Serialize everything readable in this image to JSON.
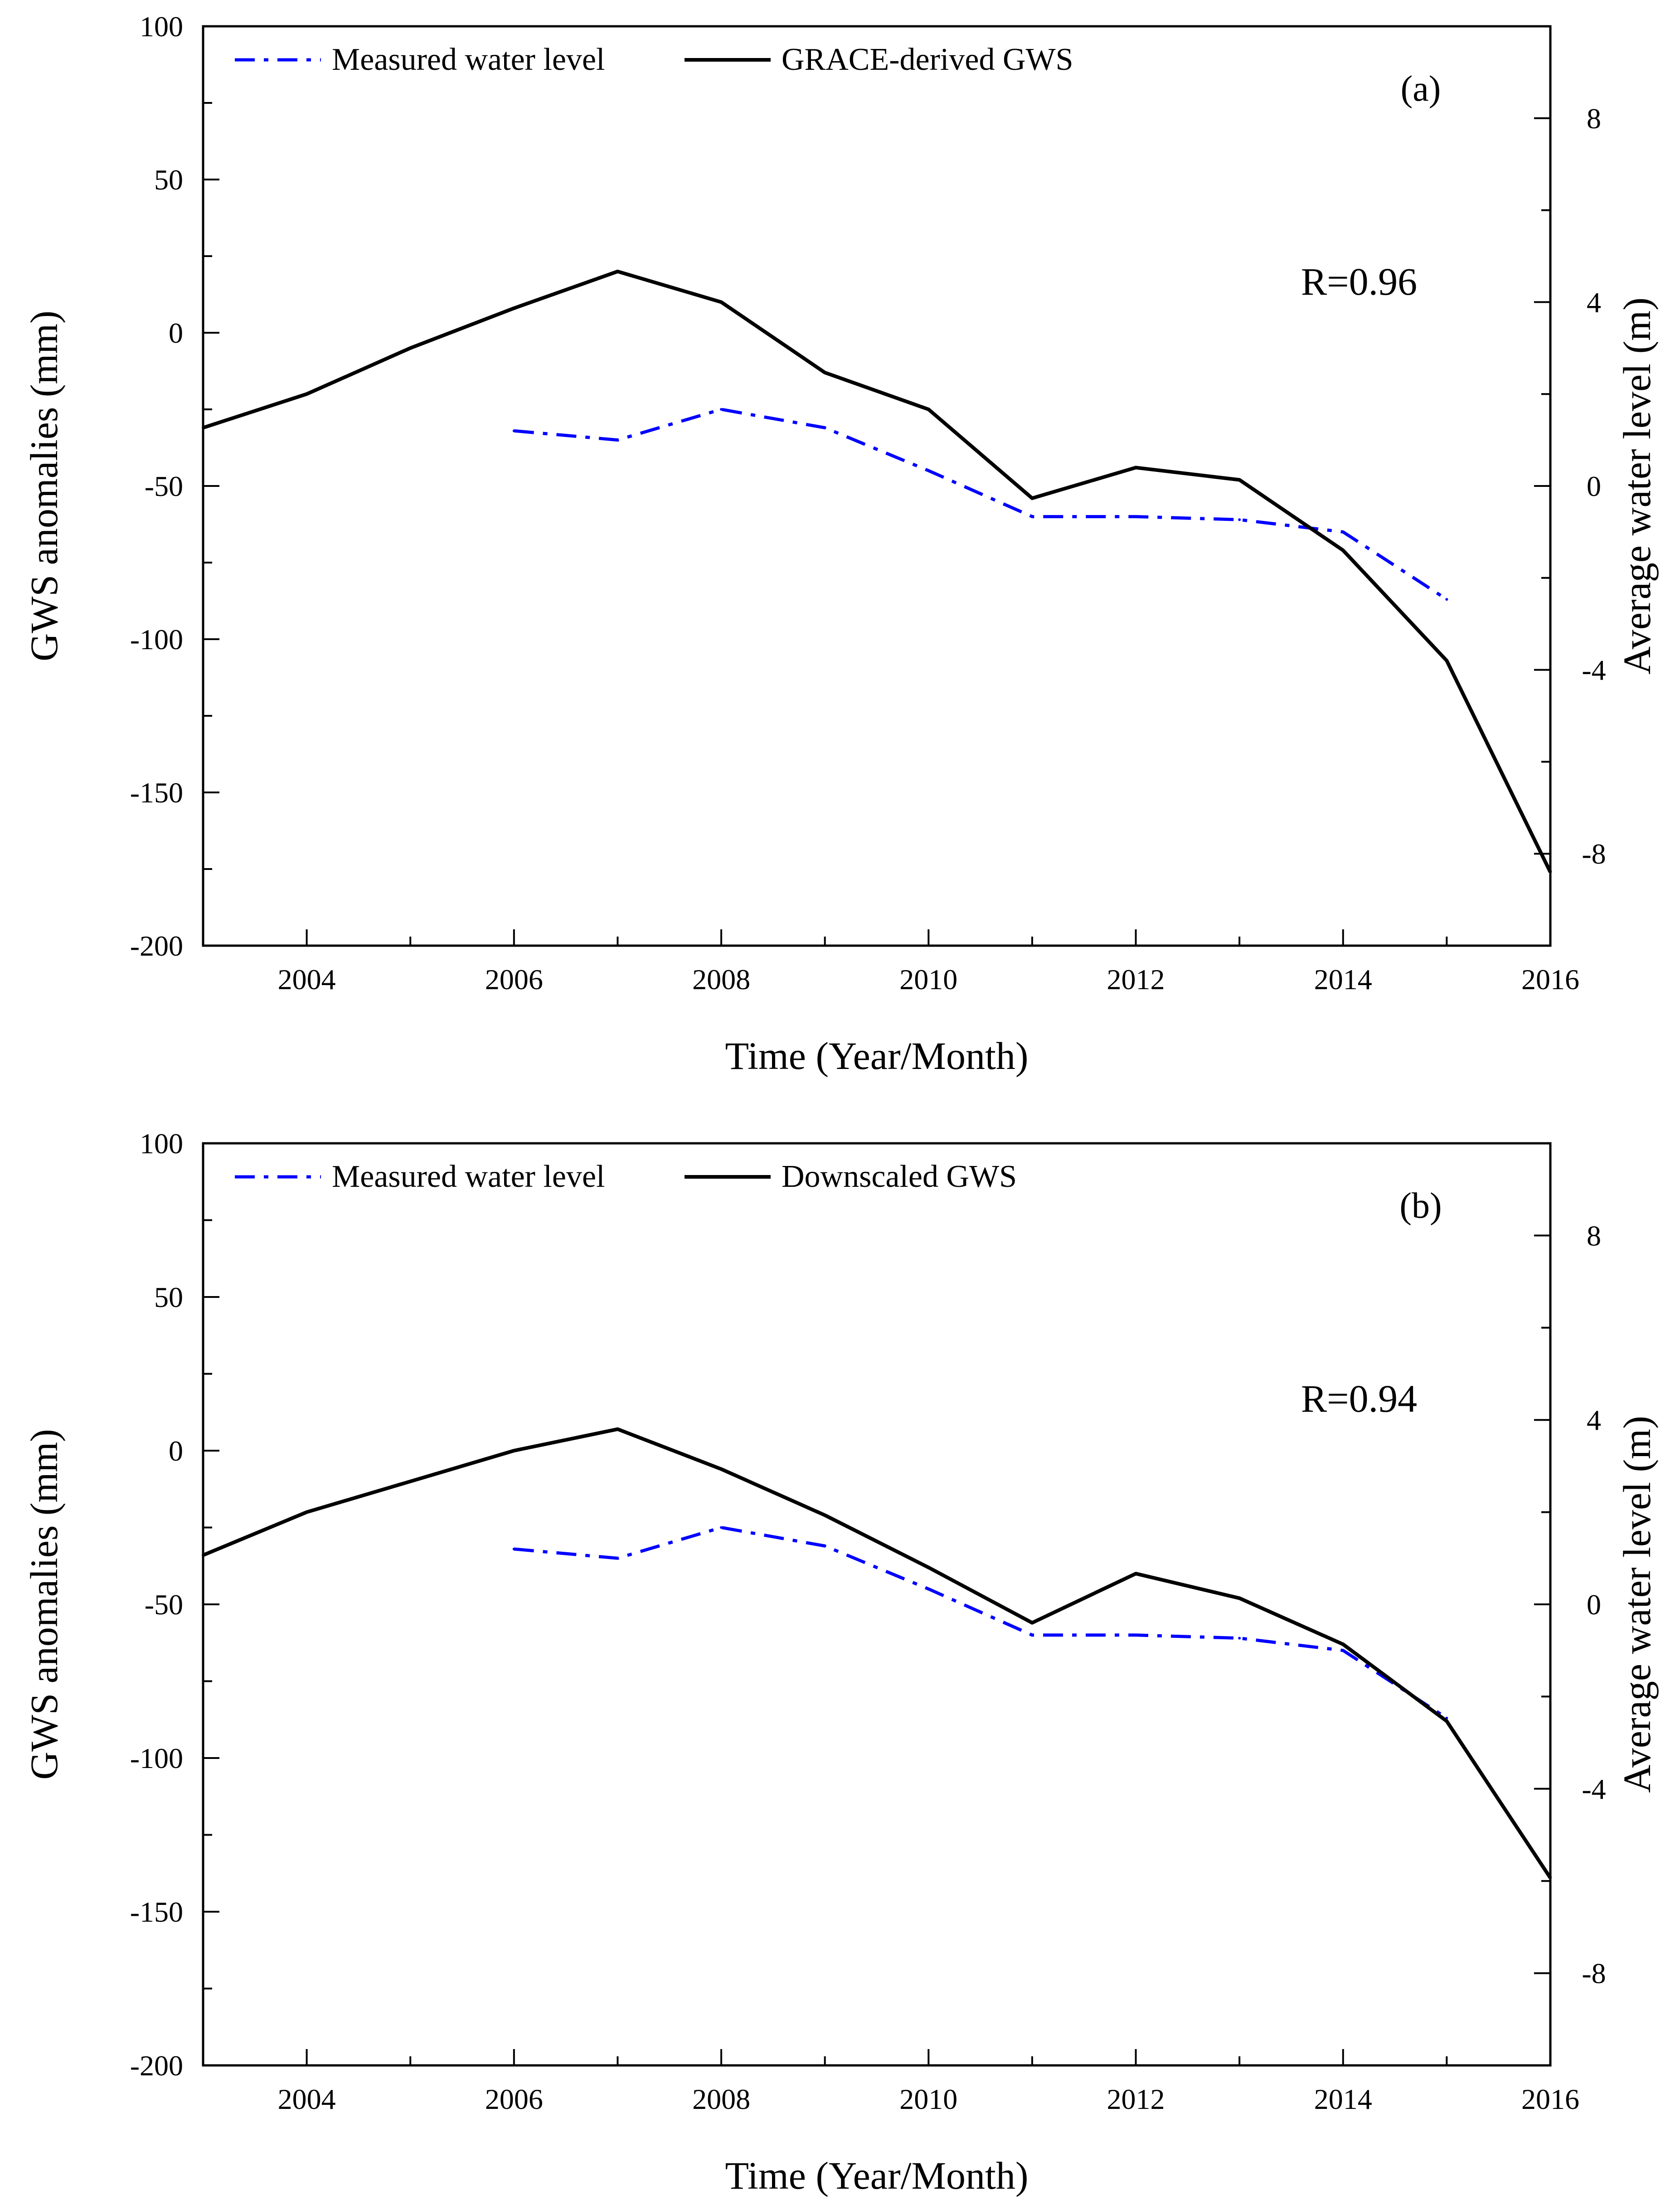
{
  "chart_data": [
    {
      "type": "line",
      "panel_label": "(a)",
      "annotation": "R=0.96",
      "xlabel": "Time (Year/Month)",
      "ylabel": "GWS anomalies (mm)",
      "y2label": "Average water level (m)",
      "xlim": [
        2003,
        2016
      ],
      "ylim": [
        -200,
        100
      ],
      "y2lim": [
        -10,
        10
      ],
      "xticks": [
        2004,
        2006,
        2008,
        2010,
        2012,
        2014,
        2016
      ],
      "yticks": [
        -200,
        -150,
        -100,
        -50,
        0,
        50,
        100
      ],
      "y2ticks": [
        -8,
        -4,
        0,
        4,
        8
      ],
      "legend_position": "top-left",
      "series": [
        {
          "name": "Measured water level",
          "axis": "left",
          "color": "#0000ff",
          "style": "dash-dot",
          "x": [
            2006,
            2007,
            2008,
            2009,
            2010,
            2011,
            2012,
            2013,
            2014,
            2015
          ],
          "y": [
            -32,
            -35,
            -25,
            -31,
            -45,
            -60,
            -60,
            -61,
            -65,
            -87
          ]
        },
        {
          "name": "GRACE-derived GWS",
          "axis": "left",
          "color": "#000000",
          "style": "solid",
          "x": [
            2003,
            2004,
            2005,
            2006,
            2007,
            2008,
            2009,
            2010,
            2011,
            2012,
            2013,
            2014,
            2015,
            2016
          ],
          "y": [
            -31,
            -20,
            -5,
            8,
            20,
            10,
            -13,
            -25,
            -54,
            -44,
            -48,
            -71,
            -107,
            -176
          ]
        }
      ]
    },
    {
      "type": "line",
      "panel_label": "(b)",
      "annotation": "R=0.94",
      "xlabel": "Time (Year/Month)",
      "ylabel": "GWS anomalies (mm)",
      "y2label": "Average water level (m)",
      "xlim": [
        2003,
        2016
      ],
      "ylim": [
        -200,
        100
      ],
      "y2lim": [
        -10,
        10
      ],
      "xticks": [
        2004,
        2006,
        2008,
        2010,
        2012,
        2014,
        2016
      ],
      "yticks": [
        -200,
        -150,
        -100,
        -50,
        0,
        50,
        100
      ],
      "y2ticks": [
        -8,
        -4,
        0,
        4,
        8
      ],
      "legend_position": "top-left",
      "series": [
        {
          "name": "Measured water level",
          "axis": "left",
          "color": "#0000ff",
          "style": "dash-dot",
          "x": [
            2006,
            2007,
            2008,
            2009,
            2010,
            2011,
            2012,
            2013,
            2014,
            2015
          ],
          "y": [
            -32,
            -35,
            -25,
            -31,
            -45,
            -60,
            -60,
            -61,
            -65,
            -87
          ]
        },
        {
          "name": "Downscaled GWS",
          "axis": "left",
          "color": "#000000",
          "style": "solid",
          "x": [
            2003,
            2004,
            2005,
            2006,
            2007,
            2008,
            2009,
            2010,
            2011,
            2012,
            2013,
            2014,
            2015,
            2016
          ],
          "y": [
            -34,
            -20,
            -10,
            0,
            7,
            -6,
            -21,
            -38,
            -56,
            -40,
            -48,
            -63,
            -88,
            -139
          ]
        }
      ]
    }
  ]
}
